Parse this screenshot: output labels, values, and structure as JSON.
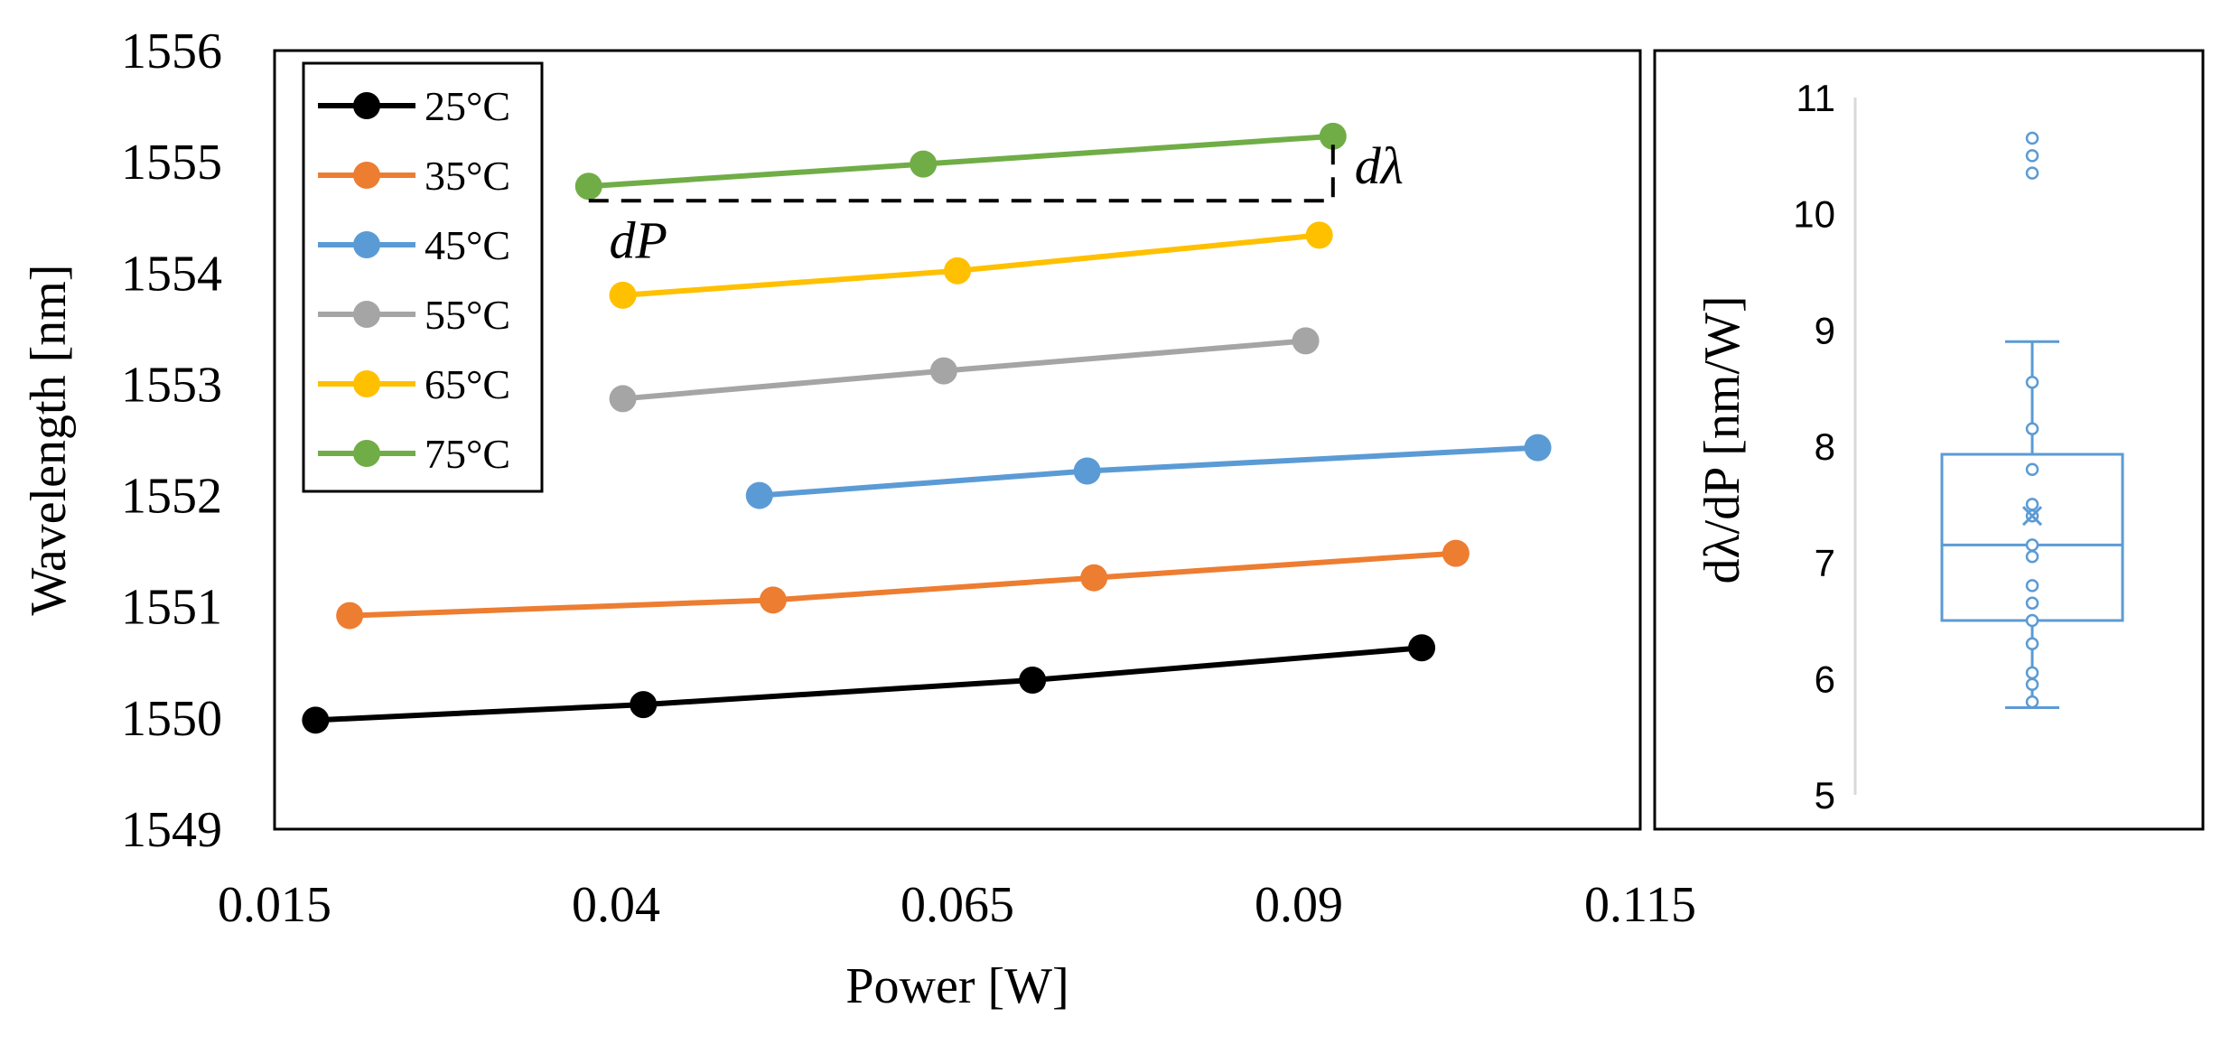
{
  "chart_data": [
    {
      "type": "line",
      "title": "",
      "xlabel": "Power [W]",
      "ylabel": "Wavelength [nm]",
      "xlim": [
        0.015,
        0.115
      ],
      "ylim": [
        1549,
        1556
      ],
      "xticks": [
        "0.015",
        "0.04",
        "0.065",
        "0.09",
        "0.115"
      ],
      "yticks": [
        "1549",
        "1550",
        "1551",
        "1552",
        "1553",
        "1554",
        "1555",
        "1556"
      ],
      "legend_position": "top-left",
      "series": [
        {
          "name": "25°C",
          "color": "#000000",
          "points": [
            [
              0.018,
              1549.98
            ],
            [
              0.042,
              1550.12
            ],
            [
              0.0705,
              1550.34
            ],
            [
              0.099,
              1550.63
            ]
          ]
        },
        {
          "name": "35°C",
          "color": "#ED7D31",
          "points": [
            [
              0.0205,
              1550.92
            ],
            [
              0.0515,
              1551.06
            ],
            [
              0.075,
              1551.26
            ],
            [
              0.1015,
              1551.48
            ]
          ]
        },
        {
          "name": "45°C",
          "color": "#5B9BD5",
          "points": [
            [
              0.0505,
              1552.0
            ],
            [
              0.0745,
              1552.22
            ],
            [
              0.1075,
              1552.43
            ]
          ]
        },
        {
          "name": "55°C",
          "color": "#A5A5A5",
          "points": [
            [
              0.0405,
              1552.87
            ],
            [
              0.064,
              1553.12
            ],
            [
              0.0905,
              1553.39
            ]
          ]
        },
        {
          "name": "65°C",
          "color": "#FFC000",
          "points": [
            [
              0.0405,
              1553.8
            ],
            [
              0.065,
              1554.02
            ],
            [
              0.0915,
              1554.34
            ]
          ]
        },
        {
          "name": "75°C",
          "color": "#70AD47",
          "points": [
            [
              0.038,
              1554.78
            ],
            [
              0.0625,
              1554.98
            ],
            [
              0.0925,
              1555.23
            ]
          ]
        }
      ],
      "annotations": {
        "dlambda": "dλ",
        "dP": "dP",
        "dashed_from": [
          0.038,
          1554.65
        ],
        "dashed_corner": [
          0.0925,
          1554.65
        ],
        "dashed_to": [
          0.0925,
          1555.23
        ]
      }
    },
    {
      "type": "box",
      "ylabel": "dλ/dP [nm/W]",
      "ylim": [
        5,
        11
      ],
      "yticks": [
        "5",
        "6",
        "7",
        "8",
        "9",
        "10",
        "11"
      ],
      "color": "#5B9BD5",
      "whisker_low": 5.75,
      "q1": 6.5,
      "median": 7.15,
      "q3": 7.93,
      "whisker_high": 8.9,
      "mean": 7.4,
      "points": [
        5.8,
        5.95,
        6.05,
        6.3,
        6.5,
        6.65,
        6.8,
        7.05,
        7.15,
        7.4,
        7.5,
        7.8,
        8.15,
        8.55
      ],
      "outliers": [
        10.35,
        10.5,
        10.65
      ]
    }
  ]
}
